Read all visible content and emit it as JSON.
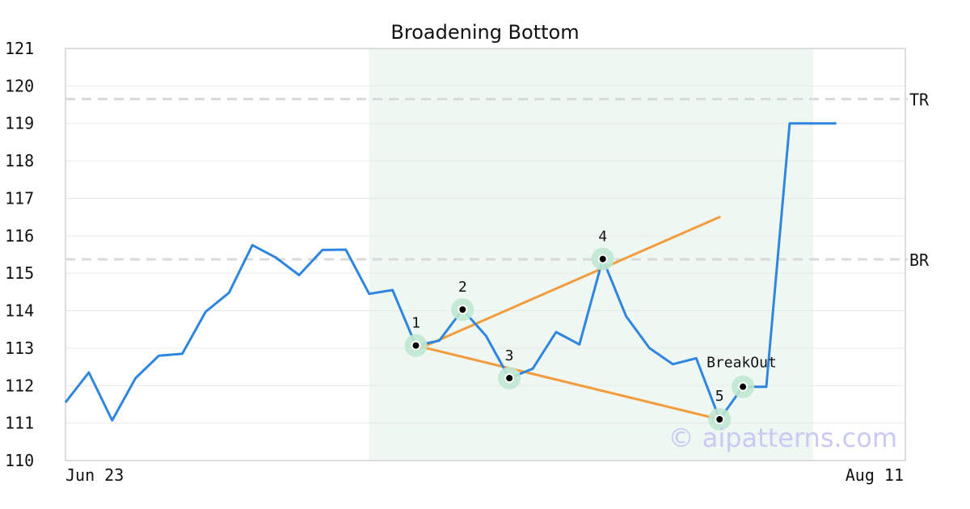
{
  "chart_data": {
    "type": "line",
    "title": "Broadening Bottom",
    "x_start_label": "Jun 23",
    "x_end_label": "Aug 11",
    "ylim": [
      110,
      121
    ],
    "yticks": [
      110,
      111,
      112,
      113,
      114,
      115,
      116,
      117,
      118,
      119,
      120,
      121
    ],
    "grid": true,
    "series": [
      {
        "values": [
          111.55,
          112.35,
          111.07,
          112.2,
          112.8,
          112.85,
          113.97,
          114.48,
          115.75,
          115.42,
          114.95,
          115.62,
          115.63,
          114.45,
          114.55,
          113.07,
          113.2,
          114.03,
          113.33,
          112.2,
          112.45,
          113.43,
          113.1,
          115.38,
          113.85,
          113.0,
          112.57,
          112.73,
          111.1,
          111.97,
          111.97,
          119.0,
          119.0,
          119.0
        ]
      }
    ],
    "horizontal_lines": [
      {
        "label": "TR",
        "value": 119.65
      },
      {
        "label": "BR",
        "value": 115.37
      }
    ],
    "pattern_points": [
      {
        "label": "1",
        "index": 15,
        "value": 113.07
      },
      {
        "label": "2",
        "index": 17,
        "value": 114.03
      },
      {
        "label": "3",
        "index": 19,
        "value": 112.2
      },
      {
        "label": "4",
        "index": 23,
        "value": 115.38
      },
      {
        "label": "5",
        "index": 28,
        "value": 111.1
      }
    ],
    "breakout": {
      "label": "BreakOut",
      "index": 29,
      "value": 111.97
    },
    "trendlines": [
      {
        "from": {
          "index": 15,
          "value": 112.95
        },
        "to": {
          "index": 28,
          "value": 116.5
        }
      },
      {
        "from": {
          "index": 15,
          "value": 113.07
        },
        "to": {
          "index": 28,
          "value": 111.1
        }
      }
    ],
    "shaded_region": {
      "from_index": 13,
      "to_index": 32
    },
    "colors": {
      "line": "#2e86de",
      "trend": "#f39c3d",
      "shade": "#eef7f2",
      "marker_halo": "#bfe8d2",
      "ref_line": "#d9d9d9",
      "grid": "#e8e8e8",
      "axis": "#cccccc",
      "watermark": "#c9c9f3"
    }
  },
  "watermark": "© aipatterns.com"
}
